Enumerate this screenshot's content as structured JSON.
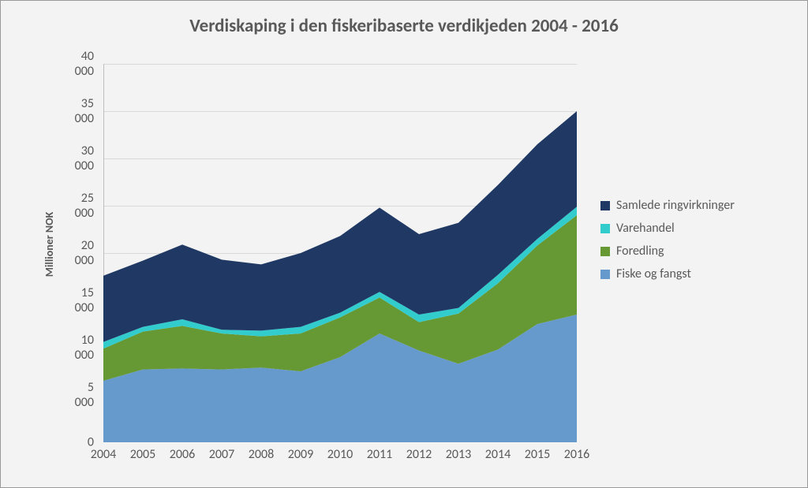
{
  "chart": {
    "type": "area",
    "title": "Verdiskaping i den fiskeribaserte verdikjeden 2004 - 2016",
    "title_fontsize": 23,
    "title_color": "#595959",
    "background_color": "#f3f3f3",
    "border_color": "#999999",
    "y_axis_label": "Millioner NOK",
    "y_axis_label_fontsize": 14,
    "label_color": "#595959",
    "tick_fontsize": 16,
    "grid_color": "#d9d9d9",
    "axis_color": "#bfbfbf",
    "categories": [
      "2004",
      "2005",
      "2006",
      "2007",
      "2008",
      "2009",
      "2010",
      "2011",
      "2012",
      "2013",
      "2014",
      "2015",
      "2016"
    ],
    "y_ticks": [
      "0",
      "5 000",
      "10 000",
      "15 000",
      "20 000",
      "25 000",
      "30 000",
      "35 000",
      "40 000"
    ],
    "ylim": [
      0,
      40000
    ],
    "ytick_step": 5000,
    "legend_position": "right",
    "series": [
      {
        "name": "Fiske og fangst",
        "color": "#6699cc",
        "values": [
          6500,
          7700,
          7800,
          7700,
          7900,
          7500,
          9000,
          11500,
          9700,
          8300,
          9800,
          12500,
          13500
        ]
      },
      {
        "name": "Foredling",
        "color": "#669933",
        "values": [
          3400,
          4000,
          4500,
          3800,
          3300,
          4000,
          4200,
          3800,
          3000,
          5300,
          7000,
          8300,
          10500
        ]
      },
      {
        "name": "Varehandel",
        "color": "#33cccc",
        "values": [
          700,
          500,
          700,
          400,
          600,
          700,
          500,
          600,
          800,
          600,
          900,
          700,
          900
        ]
      },
      {
        "name": "Samlede ringvirkninger",
        "color": "#1f3864",
        "values": [
          7000,
          7000,
          7900,
          7400,
          7000,
          7800,
          8100,
          8900,
          8500,
          9000,
          9500,
          10000,
          10100
        ]
      }
    ]
  }
}
